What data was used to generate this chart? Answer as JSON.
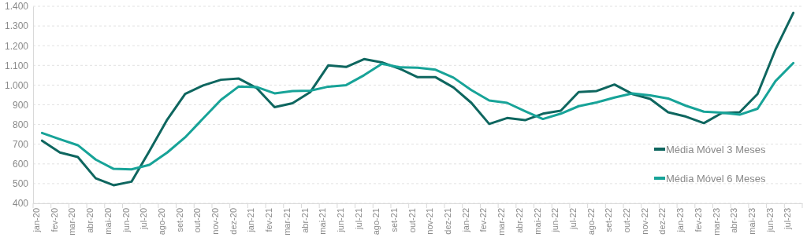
{
  "chart_data": {
    "type": "line",
    "categories": [
      "jan-20",
      "fev-20",
      "mar-20",
      "abr-20",
      "mai-20",
      "jun-20",
      "jul-20",
      "ago-20",
      "set-20",
      "out-20",
      "nov-20",
      "dez-20",
      "jan-21",
      "fev-21",
      "mar-21",
      "abr-21",
      "mai-21",
      "jun-21",
      "jul-21",
      "ago-21",
      "set-21",
      "out-21",
      "nov-21",
      "dez-21",
      "jan-22",
      "fev-22",
      "mar-22",
      "abr-22",
      "mai-22",
      "jun-22",
      "jul-22",
      "ago-22",
      "set-22",
      "out-22",
      "nov-22",
      "dez-22",
      "jan-23",
      "fev-23",
      "mar-23",
      "abr-23",
      "mai-23",
      "jun-23",
      "jul-23"
    ],
    "series": [
      {
        "name": "Média Móvel 3 Meses",
        "color": "#0e665f",
        "values": [
          718,
          658,
          635,
          527,
          492,
          510,
          665,
          825,
          955,
          998,
          1027,
          1033,
          985,
          888,
          908,
          965,
          1100,
          1092,
          1132,
          1115,
          1083,
          1040,
          1040,
          988,
          910,
          803,
          833,
          822,
          855,
          870,
          965,
          970,
          1003,
          955,
          930,
          862,
          840,
          807,
          858,
          862,
          955,
          1180,
          1367
        ]
      },
      {
        "name": "Média Móvel 6 Meses",
        "color": "#17a398",
        "values": [
          757,
          725,
          695,
          622,
          575,
          572,
          595,
          658,
          735,
          830,
          925,
          993,
          990,
          958,
          970,
          972,
          992,
          1000,
          1050,
          1108,
          1090,
          1088,
          1078,
          1038,
          975,
          922,
          910,
          868,
          828,
          855,
          893,
          912,
          937,
          958,
          948,
          932,
          895,
          865,
          860,
          850,
          880,
          1020,
          1112
        ]
      }
    ],
    "ylim": [
      400,
      1400
    ],
    "yticks": [
      {
        "value": 400,
        "label": "400"
      },
      {
        "value": 500,
        "label": "500"
      },
      {
        "value": 600,
        "label": "600"
      },
      {
        "value": 700,
        "label": "700"
      },
      {
        "value": 800,
        "label": "800"
      },
      {
        "value": 900,
        "label": "900"
      },
      {
        "value": 1000,
        "label": "1.000"
      },
      {
        "value": 1100,
        "label": "1.100"
      },
      {
        "value": 1200,
        "label": "1.200"
      },
      {
        "value": 1300,
        "label": "1.300"
      },
      {
        "value": 1400,
        "label": "1.400"
      }
    ],
    "grid": "y",
    "legend": "right",
    "marker": "none",
    "line_style": "solid"
  }
}
